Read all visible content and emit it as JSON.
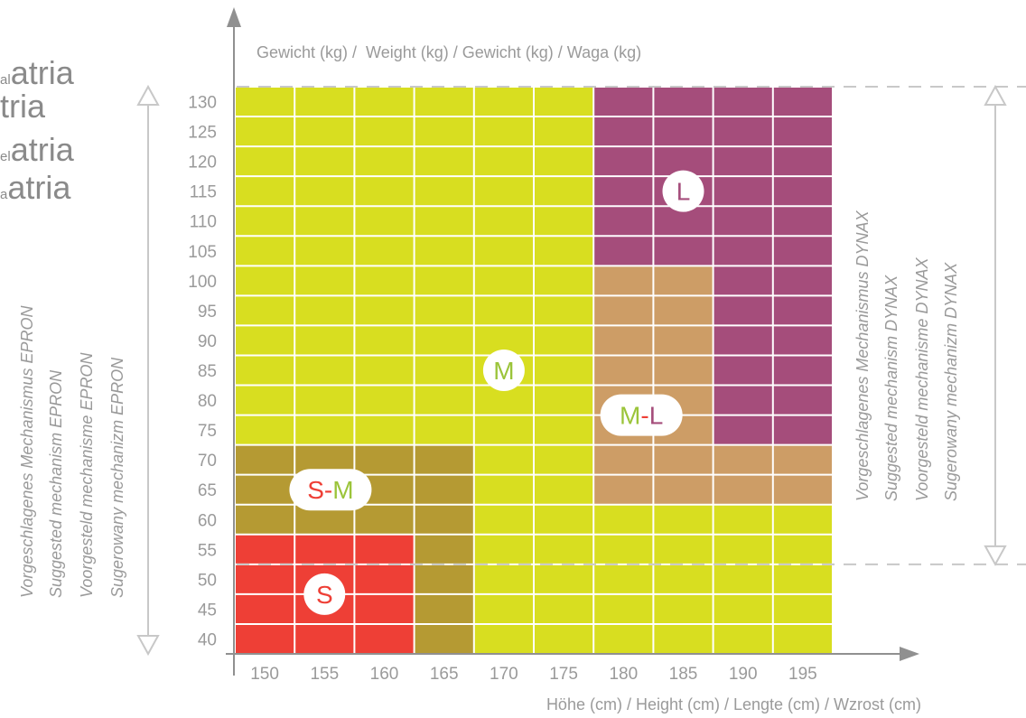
{
  "left_title": {
    "lines": [
      {
        "prefix": "al",
        "word": "atria"
      },
      {
        "prefix": "",
        "word": "tria"
      },
      {
        "prefix": "el",
        "word": "atria"
      },
      {
        "prefix": "a",
        "word": "atria"
      }
    ]
  },
  "left_side_labels": [
    "Vorgeschlagenes Mechanismus EPRON",
    "Suggested mechanism EPRON",
    "Voorgesteld mechanisme EPRON",
    "Sugerowany mechanizm EPRON"
  ],
  "right_side_labels": [
    "Vorgeschlagenes Mechanismus DYNAX",
    "Suggested mechanism DYNAX",
    "Voorgesteld mechanisme DYNAX",
    "Sugerowany mechanizm DYNAX"
  ],
  "colors": {
    "M": "#d8de20",
    "L": "#a54d7b",
    "M-L": "#cd9d66",
    "S-M": "#b59a33",
    "S": "#ee3f36",
    "grid": "#ffffff",
    "axis": "#909090",
    "dashed": "#c8c8c8",
    "tick_text": "#9a9a9a",
    "label_red": "#ee3f36",
    "label_green": "#9bc43a",
    "label_purple": "#a54d7b"
  },
  "chart_data": {
    "type": "heatmap",
    "title": "",
    "xlabel": "Höhe (cm) / Height (cm) / Lengte (cm) / Wzrost (cm)",
    "ylabel": "Gewicht (kg) /  Weight (kg) / Gewicht (kg) / Waga (kg)",
    "x_ticks": [
      150,
      155,
      160,
      165,
      170,
      175,
      180,
      185,
      190,
      195
    ],
    "y_ticks": [
      40,
      45,
      50,
      55,
      60,
      65,
      70,
      75,
      80,
      85,
      90,
      95,
      100,
      105,
      110,
      115,
      120,
      125,
      130
    ],
    "xlim": [
      147.5,
      197.5
    ],
    "ylim": [
      37.5,
      132.5
    ],
    "regions": [
      {
        "name": "M",
        "x": [
          147.5,
          197.5
        ],
        "y": [
          37.5,
          132.5
        ]
      },
      {
        "name": "L",
        "x": [
          177.5,
          197.5
        ],
        "y": [
          102.5,
          132.5
        ]
      },
      {
        "name": "L",
        "x": [
          187.5,
          197.5
        ],
        "y": [
          72.5,
          102.5
        ]
      },
      {
        "name": "M-L",
        "x": [
          177.5,
          187.5
        ],
        "y": [
          72.5,
          102.5
        ]
      },
      {
        "name": "M-L",
        "x": [
          177.5,
          197.5
        ],
        "y": [
          62.5,
          72.5
        ]
      },
      {
        "name": "S-M",
        "x": [
          147.5,
          167.5
        ],
        "y": [
          57.5,
          72.5
        ]
      },
      {
        "name": "S-M",
        "x": [
          162.5,
          167.5
        ],
        "y": [
          37.5,
          57.5
        ]
      },
      {
        "name": "S",
        "x": [
          147.5,
          162.5
        ],
        "y": [
          37.5,
          57.5
        ]
      }
    ],
    "labels": [
      {
        "parts": [
          {
            "text": "L",
            "color": "label_purple"
          }
        ],
        "x": 185,
        "y": 115
      },
      {
        "parts": [
          {
            "text": "M",
            "color": "label_green"
          }
        ],
        "x": 170,
        "y": 85
      },
      {
        "parts": [
          {
            "text": "M",
            "color": "label_green"
          },
          {
            "text": "-",
            "color": "label_red"
          },
          {
            "text": "L",
            "color": "label_purple"
          }
        ],
        "x": 181.5,
        "y": 77.5
      },
      {
        "parts": [
          {
            "text": "S",
            "color": "label_red"
          },
          {
            "text": "-",
            "color": "label_red"
          },
          {
            "text": "M",
            "color": "label_green"
          }
        ],
        "x": 155.5,
        "y": 65
      },
      {
        "parts": [
          {
            "text": "S",
            "color": "label_red"
          }
        ],
        "x": 155,
        "y": 47.5
      }
    ],
    "epron_range": [
      37.5,
      132.5
    ],
    "dynax_range": [
      52.5,
      132.5
    ]
  }
}
